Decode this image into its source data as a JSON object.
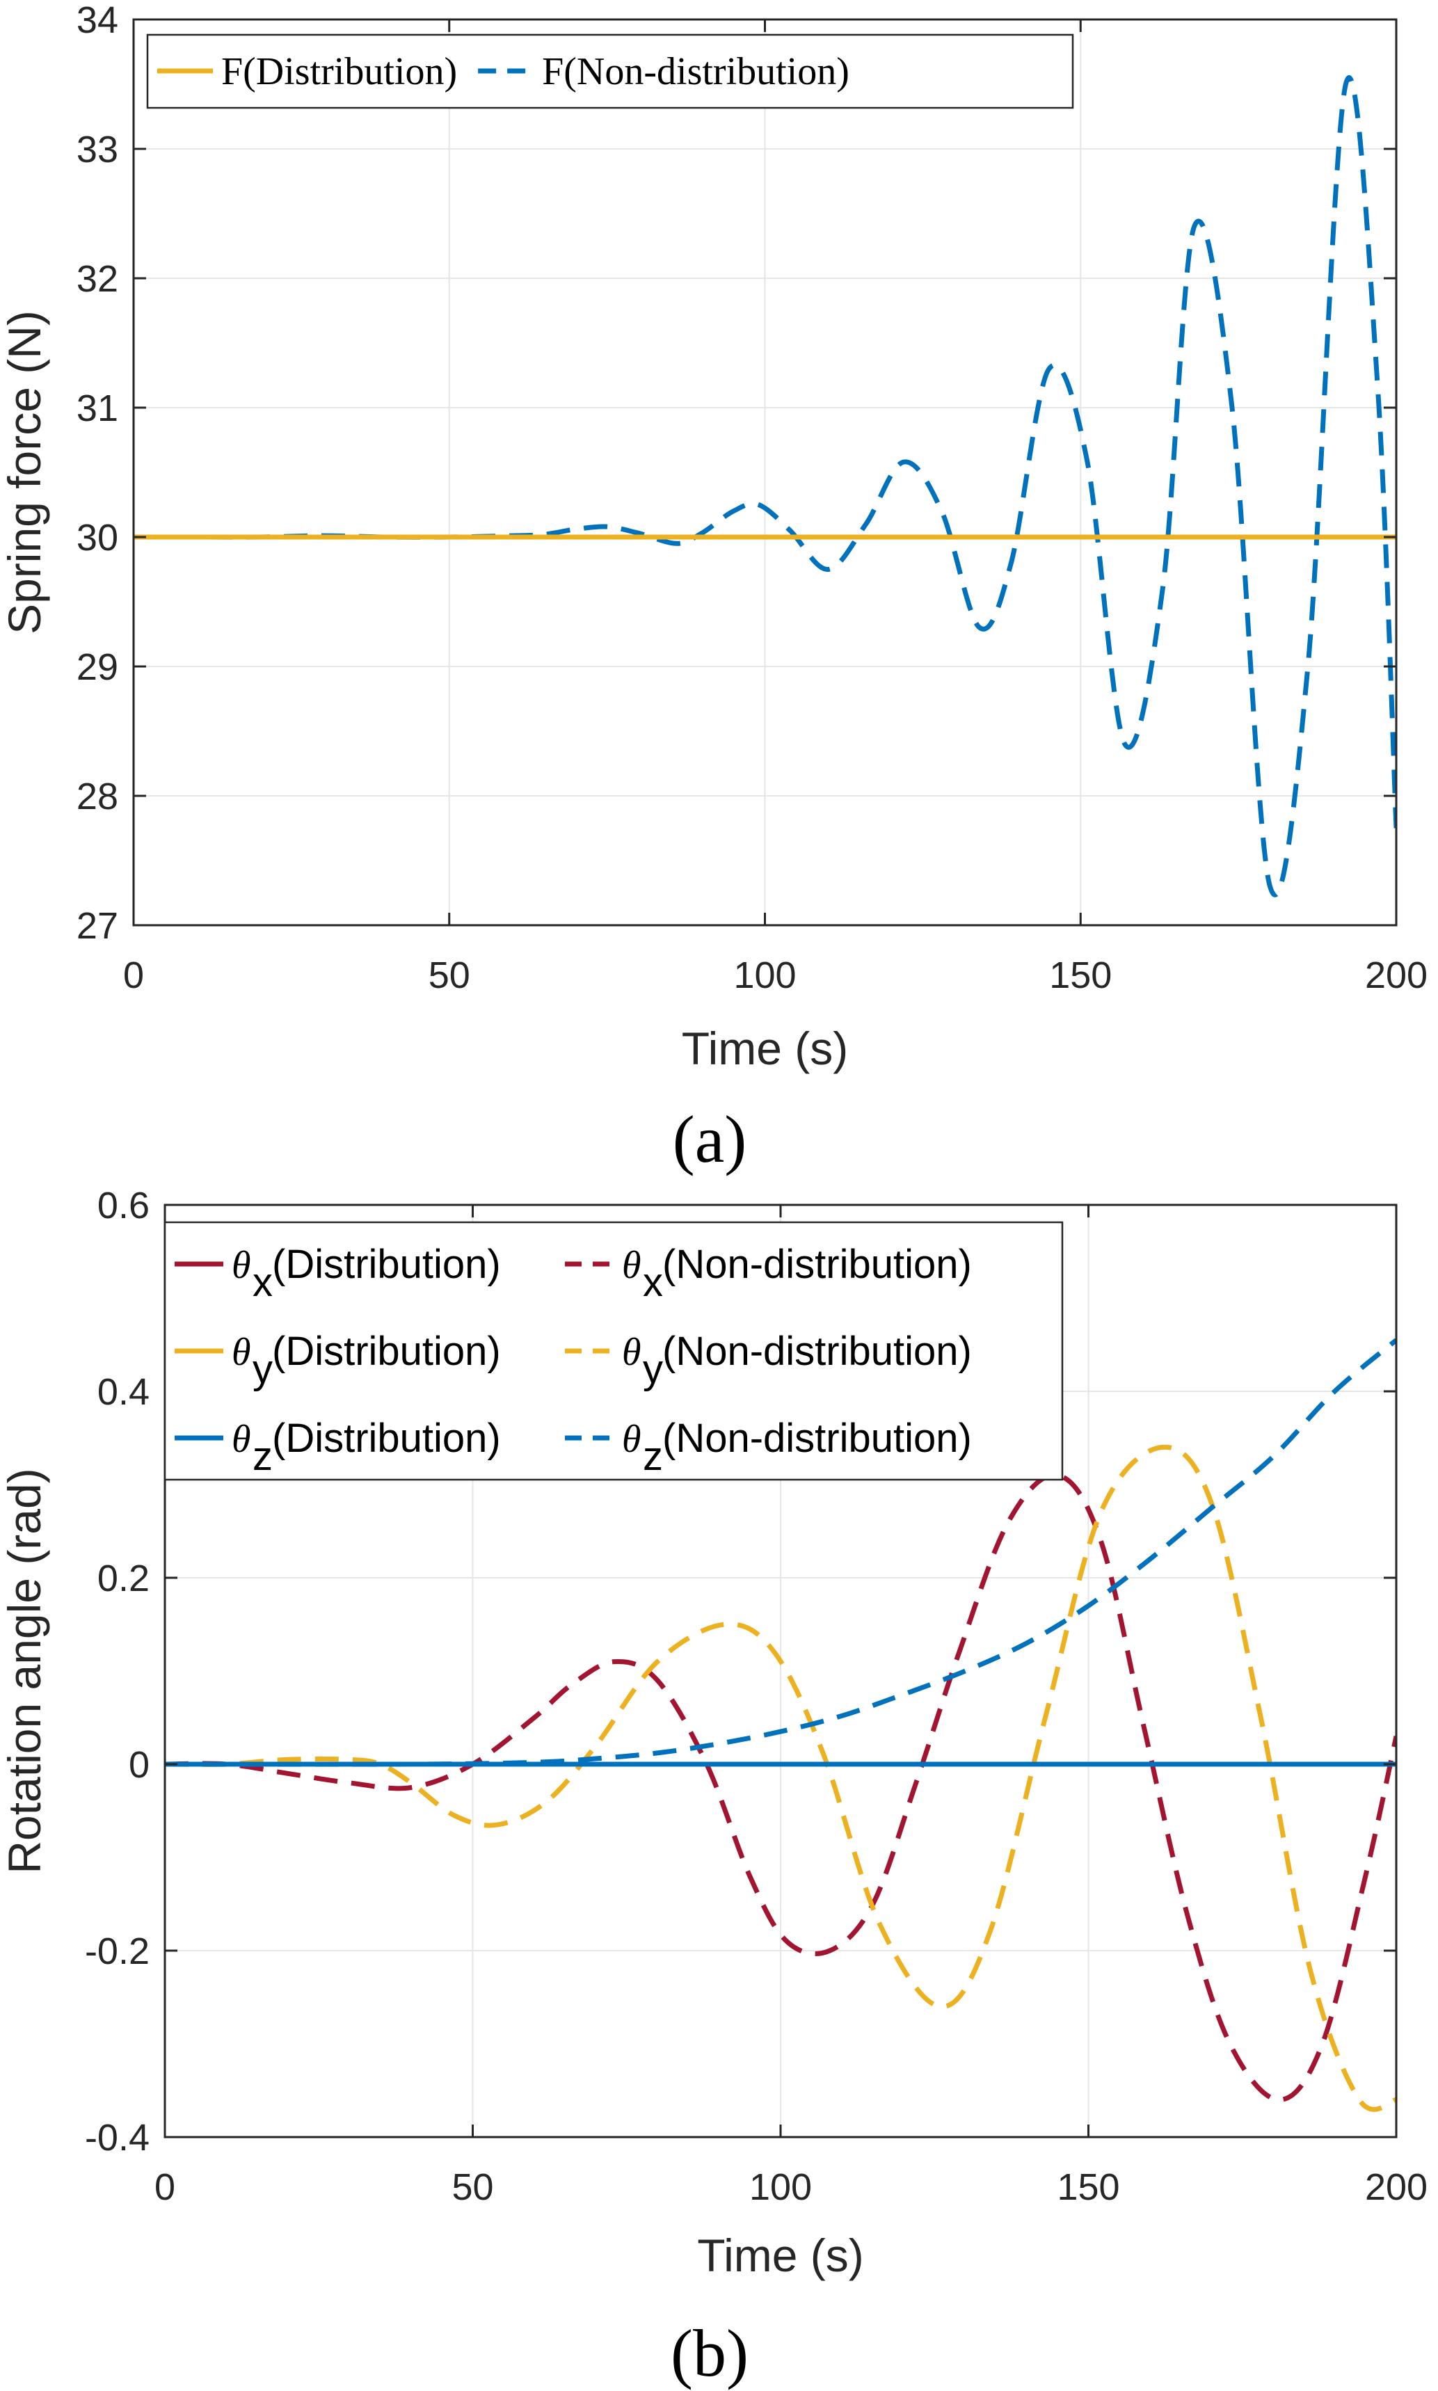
{
  "colors": {
    "red": "#A2142F",
    "yellow": "#EDB120",
    "blue": "#0072BD",
    "grid": "#e6e6e6",
    "axis": "#262626"
  },
  "chart_data": [
    {
      "type": "line",
      "caption": "(a)",
      "xlabel": "Time (s)",
      "ylabel": "Spring force (N)",
      "xlim": [
        0,
        200
      ],
      "ylim": [
        27,
        34
      ],
      "xticks": [
        "0",
        "50",
        "100",
        "150",
        "200"
      ],
      "yticks": [
        "27",
        "28",
        "29",
        "30",
        "31",
        "32",
        "33",
        "34"
      ],
      "grid": true,
      "legend_position": "top-left",
      "series": [
        {
          "name": "F(Distribution)",
          "style": "solid",
          "color": "#EDB120",
          "x": [
            0,
            200
          ],
          "y": [
            30,
            30
          ]
        },
        {
          "name": "F(Non-distribution)",
          "style": "dashed",
          "color": "#0072BD",
          "x": [
            0,
            10,
            20,
            30,
            40,
            50,
            60,
            65,
            70,
            75,
            80,
            86,
            90,
            95,
            99,
            104,
            110,
            116,
            122,
            128,
            134,
            139,
            145,
            151,
            157,
            163,
            168,
            174,
            180,
            186,
            192,
            197,
            200
          ],
          "y": [
            30,
            30,
            30,
            30.01,
            30,
            30,
            30.01,
            30.02,
            30.06,
            30.08,
            30.03,
            29.95,
            30.03,
            30.2,
            30.25,
            30.05,
            29.75,
            30.1,
            30.58,
            30.2,
            29.3,
            29.8,
            31.3,
            30.6,
            28.4,
            29.6,
            32.4,
            31.0,
            27.3,
            29.0,
            33.5,
            31.2,
            27.75
          ]
        }
      ]
    },
    {
      "type": "line",
      "caption": "(b)",
      "xlabel": "Time (s)",
      "ylabel": "Rotation angle (rad)",
      "xlim": [
        0,
        200
      ],
      "ylim": [
        -0.4,
        0.6
      ],
      "xticks": [
        "0",
        "50",
        "100",
        "150",
        "200"
      ],
      "yticks": [
        "-0.4",
        "-0.2",
        "0",
        "0.2",
        "0.4",
        "0.6"
      ],
      "grid": true,
      "legend_position": "top-left",
      "series": [
        {
          "symbol": "θ",
          "sub": "x",
          "label": "(Distribution)",
          "style": "solid",
          "color": "#A2142F",
          "x": [
            0,
            200
          ],
          "y": [
            0,
            0
          ]
        },
        {
          "symbol": "θ",
          "sub": "x",
          "label": "(Non-distribution)",
          "style": "dashed",
          "color": "#A2142F",
          "x": [
            0,
            10,
            20,
            30,
            40,
            50,
            60,
            66,
            73,
            80,
            88,
            95,
            101,
            108,
            115,
            122,
            129,
            137,
            145,
            152,
            159,
            166,
            173,
            181,
            188,
            195,
            200
          ],
          "y": [
            0,
            0,
            -0.01,
            -0.02,
            -0.025,
            0,
            0.05,
            0.085,
            0.11,
            0.09,
            0,
            -0.12,
            -0.19,
            -0.2,
            -0.15,
            -0.02,
            0.12,
            0.26,
            0.31,
            0.24,
            0.04,
            -0.16,
            -0.3,
            -0.36,
            -0.3,
            -0.12,
            0.03
          ]
        },
        {
          "symbol": "θ",
          "sub": "y",
          "label": "(Distribution)",
          "style": "solid",
          "color": "#EDB120",
          "x": [
            0,
            200
          ],
          "y": [
            0,
            0
          ]
        },
        {
          "symbol": "θ",
          "sub": "y",
          "label": "(Non-distribution)",
          "style": "dashed",
          "color": "#EDB120",
          "x": [
            0,
            10,
            20,
            30,
            35,
            40,
            47,
            54,
            62,
            70,
            80,
            91,
            99,
            107,
            116,
            126,
            134,
            143,
            152,
            162,
            170,
            178,
            186,
            194,
            200
          ],
          "y": [
            0,
            0,
            0.005,
            0.005,
            0,
            -0.02,
            -0.055,
            -0.065,
            -0.04,
            0.02,
            0.11,
            0.15,
            0.12,
            0.01,
            -0.17,
            -0.26,
            -0.18,
            0.05,
            0.27,
            0.34,
            0.28,
            0.05,
            -0.22,
            -0.36,
            -0.36
          ]
        },
        {
          "symbol": "θ",
          "sub": "z",
          "label": "(Distribution)",
          "style": "solid",
          "color": "#0072BD",
          "x": [
            0,
            200
          ],
          "y": [
            0,
            0
          ]
        },
        {
          "symbol": "θ",
          "sub": "z",
          "label": "(Non-distribution)",
          "style": "dashed",
          "color": "#0072BD",
          "x": [
            0,
            40,
            60,
            70,
            80,
            90,
            100,
            110,
            120,
            130,
            140,
            150,
            160,
            170,
            180,
            190,
            200
          ],
          "y": [
            0,
            0,
            0.002,
            0.006,
            0.012,
            0.022,
            0.035,
            0.052,
            0.075,
            0.1,
            0.13,
            0.17,
            0.22,
            0.275,
            0.33,
            0.4,
            0.455
          ]
        }
      ]
    }
  ]
}
